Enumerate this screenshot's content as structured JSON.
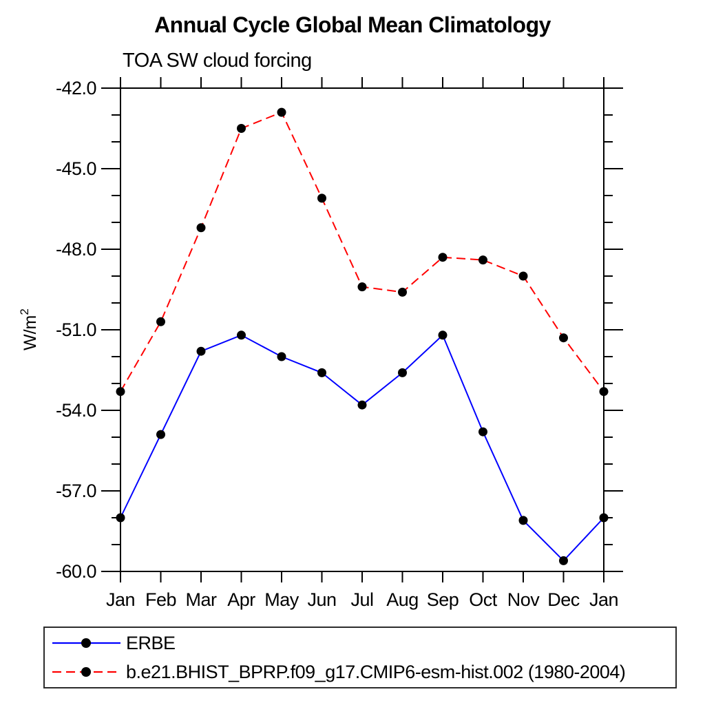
{
  "header": {
    "title": "Annual Cycle Global Mean Climatology",
    "subtitle": "TOA SW cloud forcing"
  },
  "chart_data": {
    "type": "line",
    "title": "Annual Cycle Global Mean Climatology",
    "subtitle": "TOA SW cloud forcing",
    "ylabel_base": "W/m",
    "ylabel_exponent": "2",
    "ylim": [
      -60,
      -42
    ],
    "ytick_major_values": [
      -42,
      -45,
      -48,
      -51,
      -54,
      -57,
      -60
    ],
    "ytick_labels": [
      "-42.0",
      "-45.0",
      "-48.0",
      "-51.0",
      "-54.0",
      "-57.0",
      "-60.0"
    ],
    "ytick_minor_step": 1,
    "categories": [
      "Jan",
      "Feb",
      "Mar",
      "Apr",
      "May",
      "Jun",
      "Jul",
      "Aug",
      "Sep",
      "Oct",
      "Nov",
      "Dec",
      "Jan"
    ],
    "series": [
      {
        "name": "ERBE",
        "color": "#0000ff",
        "line_style": "solid",
        "marker": "filled-circle",
        "marker_color": "#000000",
        "values": [
          -58.0,
          -54.9,
          -51.8,
          -51.2,
          -52.0,
          -52.6,
          -53.8,
          -52.6,
          -51.2,
          -54.8,
          -58.1,
          -59.6,
          -58.0
        ]
      },
      {
        "name": "b.e21.BHIST_BPRP.f09_g17.CMIP6-esm-hist.002 (1980-2004)",
        "color": "#ff0000",
        "line_style": "dashed",
        "marker": "filled-circle",
        "marker_color": "#000000",
        "values": [
          -53.3,
          -50.7,
          -47.2,
          -43.5,
          -42.9,
          -46.1,
          -49.4,
          -49.6,
          -48.3,
          -48.4,
          -49.0,
          -51.3,
          -53.3
        ]
      }
    ],
    "grid": false,
    "legend_position": "bottom",
    "axis_color": "#000000",
    "background_color": "#ffffff"
  }
}
